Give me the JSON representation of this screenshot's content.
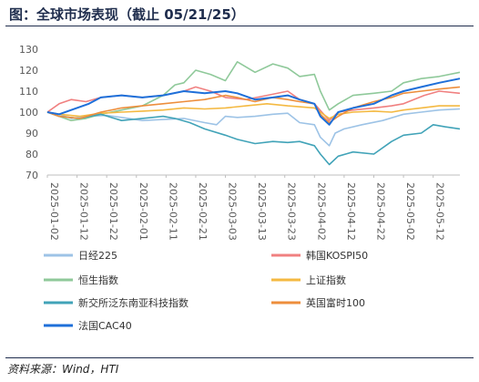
{
  "header": {
    "title": "图：全球市场表现（截止 05/21/25）"
  },
  "footer": {
    "source": "资料来源：Wind，HTI"
  },
  "chart_data": {
    "type": "line",
    "title": "图：全球市场表现（截止 05/21/25）",
    "ylim": [
      70,
      130
    ],
    "yticks": [
      70,
      80,
      90,
      100,
      110,
      120,
      130
    ],
    "x_range": [
      "2025-01-02",
      "2025-05-21"
    ],
    "xticks": [
      "2025-01-02",
      "2025-01-12",
      "2025-01-22",
      "2025-02-01",
      "2025-02-11",
      "2025-02-21",
      "2025-03-03",
      "2025-03-13",
      "2025-03-23",
      "2025-04-02",
      "2025-04-12",
      "2025-04-22",
      "2025-05-02",
      "2025-05-12"
    ],
    "grid": false,
    "legend_position": "bottom",
    "series": [
      {
        "name": "日经225",
        "color": "#9dc3e6",
        "points": [
          [
            "2025-01-02",
            100
          ],
          [
            "2025-01-06",
            99
          ],
          [
            "2025-01-10",
            97
          ],
          [
            "2025-01-16",
            98
          ],
          [
            "2025-01-22",
            98.5
          ],
          [
            "2025-01-27",
            97.5
          ],
          [
            "2025-02-03",
            96
          ],
          [
            "2025-02-10",
            96.5
          ],
          [
            "2025-02-17",
            97
          ],
          [
            "2025-02-24",
            95
          ],
          [
            "2025-02-28",
            94
          ],
          [
            "2025-03-03",
            98
          ],
          [
            "2025-03-07",
            97.5
          ],
          [
            "2025-03-13",
            98
          ],
          [
            "2025-03-19",
            99
          ],
          [
            "2025-03-24",
            99.5
          ],
          [
            "2025-03-28",
            95
          ],
          [
            "2025-04-02",
            94
          ],
          [
            "2025-04-04",
            88
          ],
          [
            "2025-04-07",
            84
          ],
          [
            "2025-04-09",
            90
          ],
          [
            "2025-04-12",
            92
          ],
          [
            "2025-04-18",
            94
          ],
          [
            "2025-04-25",
            96
          ],
          [
            "2025-05-02",
            99
          ],
          [
            "2025-05-08",
            100
          ],
          [
            "2025-05-14",
            101
          ],
          [
            "2025-05-21",
            101.5
          ]
        ]
      },
      {
        "name": "韩国KOSPI50",
        "color": "#f08080",
        "points": [
          [
            "2025-01-02",
            100
          ],
          [
            "2025-01-06",
            104
          ],
          [
            "2025-01-10",
            106
          ],
          [
            "2025-01-15",
            105
          ],
          [
            "2025-01-20",
            107
          ],
          [
            "2025-01-27",
            108
          ],
          [
            "2025-02-03",
            107
          ],
          [
            "2025-02-10",
            108
          ],
          [
            "2025-02-17",
            110
          ],
          [
            "2025-02-21",
            112
          ],
          [
            "2025-02-26",
            110
          ],
          [
            "2025-03-03",
            107
          ],
          [
            "2025-03-10",
            106
          ],
          [
            "2025-03-17",
            108
          ],
          [
            "2025-03-24",
            110
          ],
          [
            "2025-03-28",
            106
          ],
          [
            "2025-04-02",
            104
          ],
          [
            "2025-04-07",
            96
          ],
          [
            "2025-04-10",
            100
          ],
          [
            "2025-04-15",
            101
          ],
          [
            "2025-04-22",
            102
          ],
          [
            "2025-04-28",
            103
          ],
          [
            "2025-05-02",
            104
          ],
          [
            "2025-05-09",
            108
          ],
          [
            "2025-05-14",
            110
          ],
          [
            "2025-05-21",
            109
          ]
        ]
      },
      {
        "name": "恒生指数",
        "color": "#8fc99a",
        "points": [
          [
            "2025-01-02",
            100
          ],
          [
            "2025-01-06",
            98
          ],
          [
            "2025-01-10",
            96
          ],
          [
            "2025-01-15",
            97
          ],
          [
            "2025-01-20",
            99
          ],
          [
            "2025-01-27",
            101
          ],
          [
            "2025-02-03",
            103
          ],
          [
            "2025-02-10",
            108
          ],
          [
            "2025-02-14",
            113
          ],
          [
            "2025-02-17",
            114
          ],
          [
            "2025-02-21",
            120
          ],
          [
            "2025-02-26",
            118
          ],
          [
            "2025-03-03",
            115
          ],
          [
            "2025-03-07",
            124
          ],
          [
            "2025-03-13",
            119
          ],
          [
            "2025-03-19",
            123
          ],
          [
            "2025-03-24",
            121
          ],
          [
            "2025-03-28",
            117
          ],
          [
            "2025-04-02",
            118
          ],
          [
            "2025-04-04",
            110
          ],
          [
            "2025-04-07",
            101
          ],
          [
            "2025-04-10",
            104
          ],
          [
            "2025-04-15",
            108
          ],
          [
            "2025-04-22",
            109
          ],
          [
            "2025-04-28",
            110
          ],
          [
            "2025-05-02",
            114
          ],
          [
            "2025-05-08",
            116
          ],
          [
            "2025-05-14",
            117
          ],
          [
            "2025-05-21",
            119
          ]
        ]
      },
      {
        "name": "上证指数",
        "color": "#f4b942",
        "points": [
          [
            "2025-01-02",
            100
          ],
          [
            "2025-01-06",
            99
          ],
          [
            "2025-01-13",
            98
          ],
          [
            "2025-01-20",
            99.5
          ],
          [
            "2025-01-27",
            100
          ],
          [
            "2025-02-03",
            100.5
          ],
          [
            "2025-02-10",
            101
          ],
          [
            "2025-02-17",
            102
          ],
          [
            "2025-02-24",
            101.5
          ],
          [
            "2025-03-03",
            102
          ],
          [
            "2025-03-10",
            103
          ],
          [
            "2025-03-17",
            104
          ],
          [
            "2025-03-24",
            103
          ],
          [
            "2025-04-02",
            102
          ],
          [
            "2025-04-07",
            97
          ],
          [
            "2025-04-10",
            99
          ],
          [
            "2025-04-15",
            100
          ],
          [
            "2025-04-22",
            100.5
          ],
          [
            "2025-04-28",
            100
          ],
          [
            "2025-05-02",
            101
          ],
          [
            "2025-05-08",
            102
          ],
          [
            "2025-05-14",
            103
          ],
          [
            "2025-05-21",
            103
          ]
        ]
      },
      {
        "name": "新交所泛东南亚科技指数",
        "color": "#41a3b8",
        "points": [
          [
            "2025-01-02",
            100
          ],
          [
            "2025-01-06",
            98
          ],
          [
            "2025-01-13",
            97
          ],
          [
            "2025-01-20",
            99
          ],
          [
            "2025-01-27",
            96
          ],
          [
            "2025-02-03",
            97
          ],
          [
            "2025-02-10",
            98
          ],
          [
            "2025-02-14",
            97
          ],
          [
            "2025-02-19",
            95
          ],
          [
            "2025-02-24",
            92
          ],
          [
            "2025-03-03",
            89
          ],
          [
            "2025-03-07",
            87
          ],
          [
            "2025-03-13",
            85
          ],
          [
            "2025-03-19",
            86
          ],
          [
            "2025-03-24",
            85.5
          ],
          [
            "2025-03-28",
            86
          ],
          [
            "2025-04-02",
            84
          ],
          [
            "2025-04-04",
            80
          ],
          [
            "2025-04-07",
            75
          ],
          [
            "2025-04-10",
            79
          ],
          [
            "2025-04-15",
            81
          ],
          [
            "2025-04-22",
            80
          ],
          [
            "2025-04-28",
            86
          ],
          [
            "2025-05-02",
            89
          ],
          [
            "2025-05-08",
            90
          ],
          [
            "2025-05-12",
            94
          ],
          [
            "2025-05-16",
            93
          ],
          [
            "2025-05-21",
            92
          ]
        ]
      },
      {
        "name": "英国富时100",
        "color": "#ed8e3c",
        "points": [
          [
            "2025-01-02",
            100
          ],
          [
            "2025-01-06",
            98
          ],
          [
            "2025-01-13",
            97
          ],
          [
            "2025-01-20",
            100
          ],
          [
            "2025-01-27",
            102
          ],
          [
            "2025-02-03",
            103
          ],
          [
            "2025-02-10",
            104
          ],
          [
            "2025-02-17",
            105
          ],
          [
            "2025-02-24",
            106
          ],
          [
            "2025-03-03",
            108
          ],
          [
            "2025-03-07",
            107
          ],
          [
            "2025-03-13",
            105
          ],
          [
            "2025-03-19",
            107
          ],
          [
            "2025-03-24",
            106
          ],
          [
            "2025-03-28",
            105
          ],
          [
            "2025-04-02",
            104
          ],
          [
            "2025-04-04",
            99
          ],
          [
            "2025-04-07",
            95
          ],
          [
            "2025-04-10",
            98
          ],
          [
            "2025-04-15",
            102
          ],
          [
            "2025-04-22",
            105
          ],
          [
            "2025-04-28",
            107
          ],
          [
            "2025-05-02",
            109
          ],
          [
            "2025-05-08",
            110
          ],
          [
            "2025-05-14",
            111
          ],
          [
            "2025-05-21",
            112
          ]
        ]
      },
      {
        "name": "法国CAC40",
        "color": "#1e6fd9",
        "points": [
          [
            "2025-01-02",
            100
          ],
          [
            "2025-01-06",
            99
          ],
          [
            "2025-01-10",
            101
          ],
          [
            "2025-01-16",
            104
          ],
          [
            "2025-01-20",
            107
          ],
          [
            "2025-01-27",
            108
          ],
          [
            "2025-02-03",
            107
          ],
          [
            "2025-02-10",
            108
          ],
          [
            "2025-02-17",
            110
          ],
          [
            "2025-02-24",
            109
          ],
          [
            "2025-03-03",
            110
          ],
          [
            "2025-03-07",
            109
          ],
          [
            "2025-03-13",
            106
          ],
          [
            "2025-03-19",
            107
          ],
          [
            "2025-03-24",
            108
          ],
          [
            "2025-03-28",
            106
          ],
          [
            "2025-04-02",
            104
          ],
          [
            "2025-04-04",
            98
          ],
          [
            "2025-04-07",
            94
          ],
          [
            "2025-04-10",
            100
          ],
          [
            "2025-04-15",
            102
          ],
          [
            "2025-04-22",
            104
          ],
          [
            "2025-04-28",
            108
          ],
          [
            "2025-05-02",
            110
          ],
          [
            "2025-05-08",
            112
          ],
          [
            "2025-05-14",
            114
          ],
          [
            "2025-05-21",
            116
          ]
        ]
      }
    ]
  }
}
